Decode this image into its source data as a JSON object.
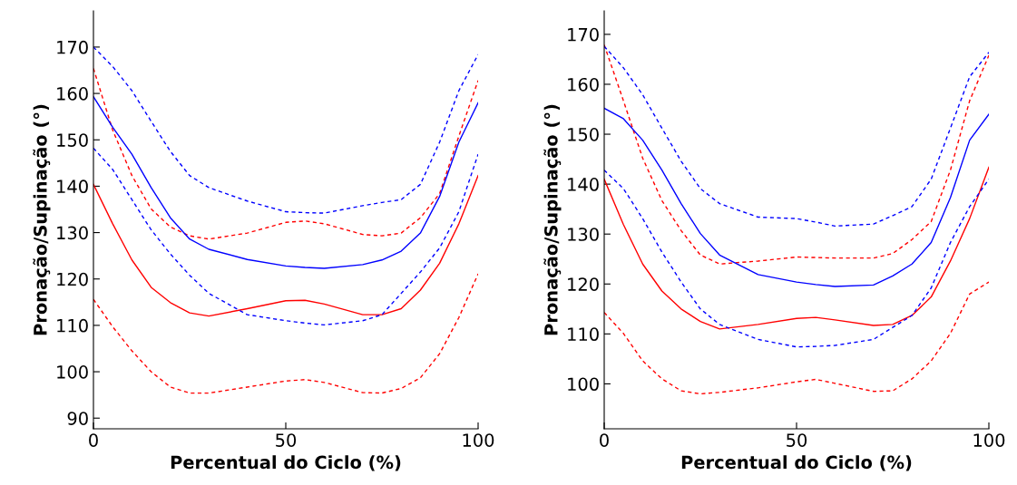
{
  "chart_data": [
    {
      "type": "line",
      "xlabel": "Percentual do Ciclo (%)",
      "ylabel": "Pronação/Supinação (°)",
      "x": [
        0,
        5,
        10,
        15,
        20,
        25,
        30,
        40,
        50,
        55,
        60,
        70,
        75,
        80,
        85,
        90,
        95,
        100
      ],
      "xlim": [
        0,
        100
      ],
      "xticks": [
        0,
        50,
        100
      ],
      "ylim": [
        87.7,
        177.8
      ],
      "yticks": [
        90,
        100,
        110,
        120,
        130,
        140,
        150,
        160,
        170
      ],
      "grid": false,
      "legend": false,
      "series": [
        {
          "color": "#ff0000",
          "line_style": "dashed",
          "values": [
            115.6,
            109.7,
            104.5,
            100.0,
            96.7,
            95.4,
            95.4,
            96.7,
            98.0,
            98.3,
            97.7,
            95.5,
            95.4,
            96.4,
            98.7,
            103.9,
            111.7,
            121.1
          ]
        },
        {
          "color": "#ff0000",
          "line_style": "dashed",
          "values": [
            165.4,
            152.1,
            142.3,
            135.1,
            131.2,
            129.3,
            128.6,
            129.9,
            132.2,
            132.5,
            131.9,
            129.6,
            129.3,
            129.9,
            133.2,
            138.4,
            150.8,
            162.8
          ]
        },
        {
          "color": "#ff0000",
          "line_style": "solid",
          "values": [
            140.4,
            131.9,
            124.1,
            118.2,
            114.9,
            112.7,
            112.0,
            113.6,
            115.3,
            115.4,
            114.6,
            112.3,
            112.3,
            113.6,
            117.6,
            123.4,
            131.9,
            142.3
          ]
        },
        {
          "color": "#0000ff",
          "line_style": "dashed",
          "values": [
            148.2,
            143.6,
            137.1,
            130.6,
            125.4,
            120.8,
            116.9,
            112.3,
            111.0,
            110.5,
            110.1,
            111.0,
            112.3,
            116.9,
            121.5,
            126.7,
            134.5,
            146.9
          ]
        },
        {
          "color": "#0000ff",
          "line_style": "dashed",
          "values": [
            170.0,
            165.8,
            160.6,
            154.0,
            147.5,
            142.3,
            139.7,
            136.8,
            134.5,
            134.3,
            134.2,
            135.8,
            136.5,
            137.1,
            140.4,
            149.5,
            160.6,
            168.4
          ]
        },
        {
          "color": "#0000ff",
          "line_style": "solid",
          "values": [
            159.3,
            152.7,
            146.9,
            139.7,
            133.2,
            128.6,
            126.4,
            124.2,
            122.8,
            122.5,
            122.3,
            123.1,
            124.1,
            126.0,
            129.9,
            137.8,
            149.5,
            158.0
          ]
        }
      ]
    },
    {
      "type": "line",
      "xlabel": "Percentual do Ciclo (%)",
      "ylabel": "Pronação/Supinação (°)",
      "x": [
        0,
        5,
        10,
        15,
        20,
        25,
        30,
        40,
        50,
        55,
        60,
        70,
        75,
        80,
        85,
        90,
        95,
        100
      ],
      "xlim": [
        0,
        100
      ],
      "xticks": [
        0,
        50,
        100
      ],
      "ylim": [
        91.0,
        174.7
      ],
      "yticks": [
        100,
        110,
        120,
        130,
        140,
        150,
        160,
        170
      ],
      "grid": false,
      "legend": false,
      "series": [
        {
          "color": "#ff0000",
          "line_style": "dashed",
          "values": [
            114.3,
            110.1,
            104.6,
            101.0,
            98.6,
            98.0,
            98.3,
            99.2,
            100.4,
            100.9,
            100.1,
            98.5,
            98.6,
            101.0,
            104.6,
            110.1,
            118.0,
            120.4
          ]
        },
        {
          "color": "#ff0000",
          "line_style": "dashed",
          "values": [
            167.9,
            156.7,
            145.2,
            136.7,
            130.7,
            125.8,
            124.0,
            124.6,
            125.4,
            125.3,
            125.2,
            125.2,
            126.1,
            128.9,
            132.5,
            142.8,
            156.7,
            165.8
          ]
        },
        {
          "color": "#ff0000",
          "line_style": "solid",
          "values": [
            141.0,
            131.9,
            124.0,
            118.6,
            115.0,
            112.5,
            111.0,
            111.9,
            113.1,
            113.3,
            112.8,
            111.7,
            111.9,
            113.7,
            117.4,
            124.6,
            133.1,
            143.4
          ]
        },
        {
          "color": "#0000ff",
          "line_style": "dashed",
          "values": [
            142.8,
            139.1,
            133.1,
            126.4,
            120.4,
            115.0,
            111.9,
            108.9,
            107.4,
            107.5,
            107.7,
            108.9,
            111.3,
            113.7,
            119.2,
            128.3,
            135.5,
            141.0
          ]
        },
        {
          "color": "#0000ff",
          "line_style": "dashed",
          "values": [
            167.6,
            163.3,
            157.9,
            151.2,
            144.6,
            139.1,
            136.1,
            133.4,
            133.1,
            132.4,
            131.6,
            132.0,
            133.7,
            135.5,
            141.0,
            151.2,
            161.5,
            166.4
          ]
        },
        {
          "color": "#0000ff",
          "line_style": "solid",
          "values": [
            155.2,
            153.1,
            148.8,
            142.8,
            136.1,
            130.1,
            125.8,
            121.9,
            120.4,
            119.9,
            119.5,
            119.8,
            121.6,
            124.0,
            128.3,
            137.3,
            148.8,
            154.0
          ]
        }
      ]
    }
  ]
}
